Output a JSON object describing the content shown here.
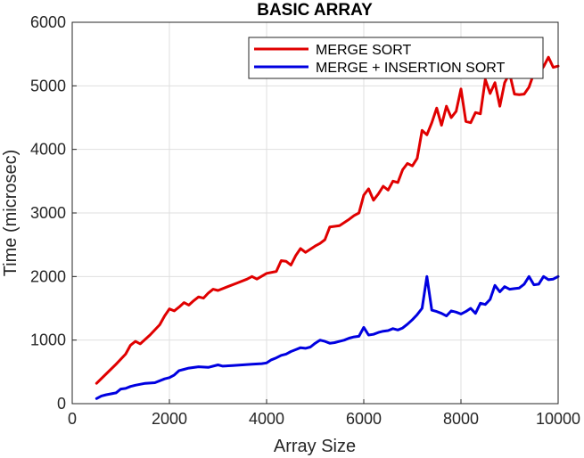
{
  "chart_data": {
    "type": "line",
    "title": "BASIC ARRAY",
    "xlabel": "Array Size",
    "ylabel": "Time (microsec)",
    "xlim": [
      0,
      10000
    ],
    "ylim": [
      0,
      6000
    ],
    "xticks": [
      0,
      2000,
      4000,
      6000,
      8000,
      10000
    ],
    "yticks": [
      0,
      1000,
      2000,
      3000,
      4000,
      5000,
      6000
    ],
    "xtick_labels": [
      "0",
      "2000",
      "4000",
      "6000",
      "8000",
      "10000"
    ],
    "ytick_labels": [
      "0",
      "1000",
      "2000",
      "3000",
      "4000",
      "5000",
      "6000"
    ],
    "grid": true,
    "legend_position": "top-right",
    "series": [
      {
        "name": "MERGE SORT",
        "color": "#e00000",
        "x": [
          500,
          700,
          900,
          1100,
          1200,
          1300,
          1400,
          1600,
          1800,
          1900,
          2000,
          2100,
          2200,
          2300,
          2400,
          2500,
          2600,
          2700,
          2800,
          2900,
          3000,
          3200,
          3400,
          3600,
          3700,
          3800,
          4000,
          4200,
          4300,
          4400,
          4500,
          4600,
          4700,
          4800,
          5000,
          5100,
          5200,
          5300,
          5500,
          5700,
          5800,
          5900,
          6000,
          6100,
          6200,
          6300,
          6400,
          6500,
          6600,
          6700,
          6800,
          6900,
          7000,
          7100,
          7200,
          7300,
          7400,
          7500,
          7600,
          7700,
          7800,
          7900,
          8000,
          8100,
          8200,
          8300,
          8400,
          8500,
          8600,
          8700,
          8800,
          8900,
          9000,
          9100,
          9200,
          9300,
          9400,
          9500,
          9600,
          9700,
          9800,
          9900,
          10000
        ],
        "values": [
          320,
          470,
          620,
          780,
          920,
          980,
          940,
          1080,
          1240,
          1380,
          1490,
          1460,
          1520,
          1590,
          1550,
          1620,
          1680,
          1660,
          1740,
          1800,
          1780,
          1840,
          1900,
          1960,
          2000,
          1960,
          2050,
          2080,
          2250,
          2240,
          2180,
          2330,
          2440,
          2380,
          2480,
          2520,
          2580,
          2780,
          2800,
          2900,
          2960,
          3000,
          3280,
          3380,
          3200,
          3300,
          3420,
          3360,
          3500,
          3480,
          3680,
          3780,
          3740,
          3860,
          4300,
          4230,
          4420,
          4650,
          4380,
          4680,
          4500,
          4600,
          4950,
          4440,
          4420,
          4580,
          4560,
          5100,
          4880,
          5050,
          4680,
          5050,
          5200,
          4870,
          4860,
          4870,
          4980,
          5200,
          5200,
          5300,
          5450,
          5290,
          5310
        ]
      },
      {
        "name": "MERGE + INSERTION SORT",
        "color": "#0000e0",
        "x": [
          500,
          600,
          700,
          900,
          1000,
          1100,
          1200,
          1300,
          1500,
          1700,
          1900,
          2000,
          2100,
          2200,
          2300,
          2400,
          2600,
          2800,
          3000,
          3100,
          3300,
          3500,
          3700,
          3900,
          4000,
          4100,
          4200,
          4300,
          4400,
          4500,
          4600,
          4700,
          4800,
          4900,
          5000,
          5100,
          5200,
          5300,
          5400,
          5500,
          5600,
          5700,
          5800,
          5900,
          6000,
          6100,
          6200,
          6300,
          6400,
          6500,
          6600,
          6700,
          6800,
          6900,
          7000,
          7100,
          7200,
          7300,
          7400,
          7500,
          7600,
          7700,
          7800,
          7900,
          8000,
          8100,
          8200,
          8300,
          8400,
          8500,
          8600,
          8700,
          8800,
          8900,
          9000,
          9100,
          9200,
          9300,
          9400,
          9500,
          9600,
          9700,
          9800,
          9900,
          10000
        ],
        "values": [
          80,
          120,
          140,
          170,
          230,
          240,
          270,
          290,
          320,
          330,
          390,
          410,
          450,
          520,
          540,
          560,
          580,
          570,
          610,
          590,
          600,
          610,
          620,
          630,
          640,
          690,
          720,
          760,
          780,
          820,
          850,
          880,
          870,
          890,
          950,
          1000,
          980,
          950,
          960,
          980,
          1000,
          1030,
          1050,
          1060,
          1200,
          1080,
          1090,
          1120,
          1140,
          1150,
          1180,
          1160,
          1190,
          1250,
          1320,
          1400,
          1500,
          2000,
          1470,
          1450,
          1420,
          1380,
          1460,
          1440,
          1410,
          1450,
          1500,
          1420,
          1580,
          1560,
          1640,
          1860,
          1760,
          1840,
          1800,
          1810,
          1820,
          1880,
          2000,
          1870,
          1880,
          2000,
          1950,
          1960,
          2000
        ]
      }
    ]
  }
}
